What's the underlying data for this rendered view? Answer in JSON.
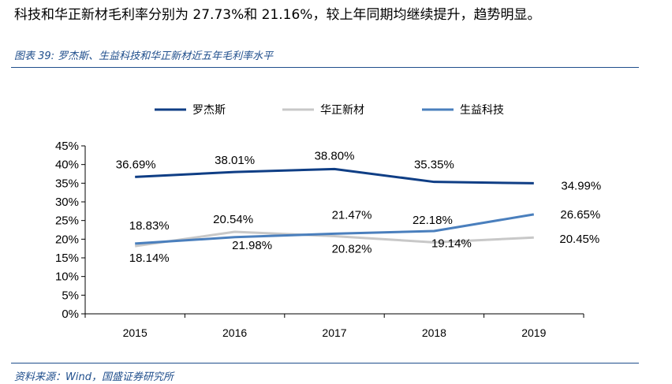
{
  "intro_text": "科技和华正新材毛利率分别为 27.73%和 21.16%，较上年同期均继续提升，趋势明显。",
  "figure_title": "图表 39:  罗杰斯、生益科技和华正新材近五年毛利率水平",
  "source": "资料来源：Wind，国盛证券研究所",
  "colors": {
    "accent": "#1f4e8c"
  },
  "chart_data": {
    "type": "line",
    "title": "罗杰斯、生益科技和华正新材近五年毛利率水平",
    "categories": [
      "2015",
      "2016",
      "2017",
      "2018",
      "2019"
    ],
    "ylim": [
      0,
      45
    ],
    "yticks": [
      0,
      5,
      10,
      15,
      20,
      25,
      30,
      35,
      40,
      45
    ],
    "ytick_labels": [
      "0%",
      "5%",
      "10%",
      "15%",
      "20%",
      "25%",
      "30%",
      "35%",
      "40%",
      "45%"
    ],
    "legend_position": "top",
    "series": [
      {
        "name": "罗杰斯",
        "color": "#0f3e85",
        "values": [
          36.69,
          38.01,
          38.8,
          35.35,
          34.99
        ],
        "labels": [
          "36.69%",
          "38.01%",
          "38.80%",
          "35.35%",
          "34.99%"
        ]
      },
      {
        "name": "华正新材",
        "color": "#c8c8c8",
        "values": [
          18.14,
          21.98,
          20.82,
          19.14,
          20.45
        ],
        "labels": [
          "18.14%",
          "21.98%",
          "20.82%",
          "19.14%",
          "20.45%"
        ]
      },
      {
        "name": "生益科技",
        "color": "#4a7fbd",
        "values": [
          18.83,
          20.54,
          21.47,
          22.18,
          26.65
        ],
        "labels": [
          "18.83%",
          "20.54%",
          "21.47%",
          "22.18%",
          "26.65%"
        ]
      }
    ]
  }
}
